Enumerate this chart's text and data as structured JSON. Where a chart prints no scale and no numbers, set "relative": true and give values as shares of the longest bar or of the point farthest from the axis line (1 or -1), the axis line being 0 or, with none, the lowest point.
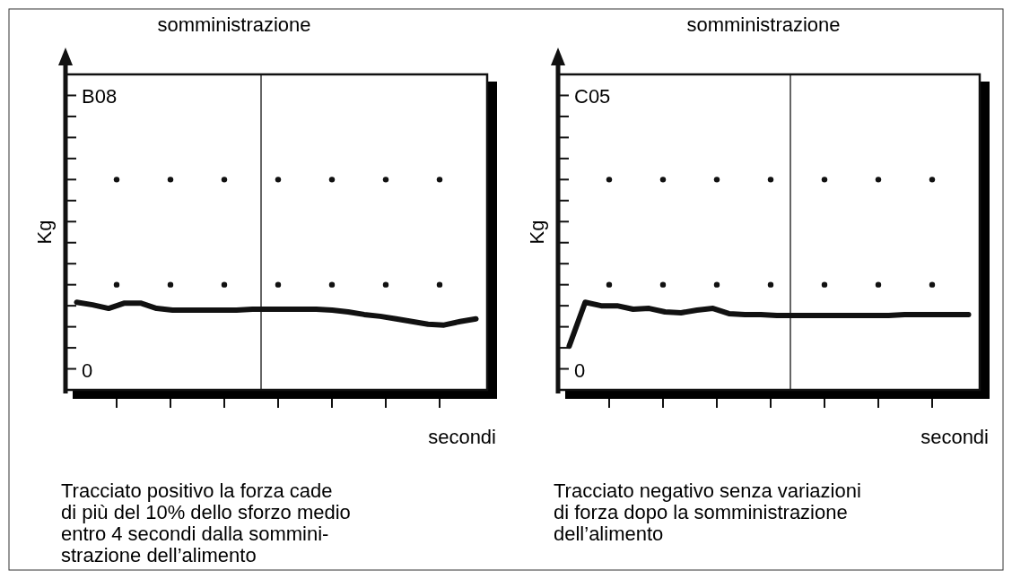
{
  "chart_data": [
    {
      "type": "line",
      "relative": true,
      "xlabel": "secondi",
      "ylabel": "Kg",
      "categories": [
        null,
        null,
        null,
        null,
        null,
        null,
        null,
        null,
        null,
        null,
        null,
        null,
        null,
        null,
        null,
        null,
        null,
        null,
        null,
        null,
        null,
        null,
        null,
        null,
        null,
        null
      ],
      "series": [
        {
          "color": "#111111",
          "values": [
            1,
            0.97,
            0.93,
            0.99,
            0.99,
            0.93,
            0.91,
            0.91,
            0.91,
            0.91,
            0.91,
            0.92,
            0.92,
            0.92,
            0.92,
            0.92,
            0.91,
            0.89,
            0.86,
            0.84,
            0.81,
            0.78,
            0.75,
            0.74,
            0.78,
            0.81
          ]
        }
      ],
      "annotations": [
        "B08",
        "0",
        "Tracciato positivo la forza cade\ndi più del 10% dello sforzo medio\nentro 4 secondi dalla sommini-\nstrazione dell’alimento",
        "somministrazione"
      ]
    },
    {
      "type": "line",
      "relative": true,
      "xlabel": "secondi",
      "ylabel": "Kg",
      "categories": [
        null,
        null,
        null,
        null,
        null,
        null,
        null,
        null,
        null,
        null,
        null,
        null,
        null,
        null,
        null,
        null,
        null,
        null,
        null,
        null,
        null,
        null,
        null,
        null,
        null,
        null
      ],
      "series": [
        {
          "color": "#111111",
          "values": [
            0.5,
            1,
            0.96,
            0.96,
            0.92,
            0.93,
            0.89,
            0.88,
            0.91,
            0.93,
            0.87,
            0.86,
            0.86,
            0.85,
            0.85,
            0.85,
            0.85,
            0.85,
            0.85,
            0.85,
            0.85,
            0.86,
            0.86,
            0.86,
            0.86,
            0.86
          ]
        }
      ],
      "annotations": [
        "C05",
        "0",
        "Tracciato negativo senza variazioni\ndi forza dopo la somministrazione\ndell’alimento",
        "somministrazione"
      ]
    }
  ]
}
